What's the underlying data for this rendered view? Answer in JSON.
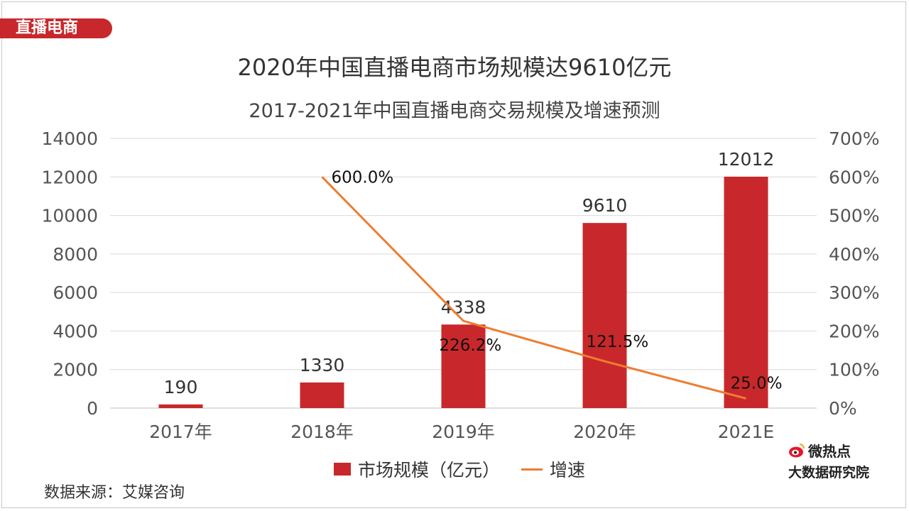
{
  "tag": "直播电商",
  "source": "数据来源：艾媒咨询",
  "brand": {
    "line1": "微热点",
    "line2": "大数据研究院",
    "icon": "weibo-eye-icon"
  },
  "legend": {
    "bar_label": "市场规模（亿元）",
    "line_label": "增速"
  },
  "colors": {
    "bar": "#c8282b",
    "line": "#ed7d31",
    "grid": "#d9d9d9",
    "tag": "#c8282b"
  },
  "chart_data": {
    "type": "bar",
    "title": "2020年中国直播电商市场规模达9610亿元",
    "subtitle": "2017-2021年中国直播电商交易规模及增速预测",
    "categories": [
      "2017年",
      "2018年",
      "2019年",
      "2020年",
      "2021E"
    ],
    "series": [
      {
        "name": "市场规模（亿元）",
        "type": "bar",
        "axis": "left",
        "values": [
          190,
          1330,
          4338,
          9610,
          12012
        ],
        "labels": [
          "190",
          "1330",
          "4338",
          "9610",
          "12012"
        ]
      },
      {
        "name": "增速",
        "type": "line",
        "axis": "right",
        "values": [
          null,
          600.0,
          226.2,
          121.5,
          25.0
        ],
        "labels": [
          null,
          "600.0%",
          "226.2%",
          "121.5%",
          "25.0%"
        ]
      }
    ],
    "left_axis": {
      "min": 0,
      "max": 14000,
      "ticks": [
        0,
        2000,
        4000,
        6000,
        8000,
        10000,
        12000,
        14000
      ]
    },
    "right_axis": {
      "min": 0,
      "max": 700,
      "ticks": [
        "0%",
        "100%",
        "200%",
        "300%",
        "400%",
        "500%",
        "600%",
        "700%"
      ]
    },
    "grid": true,
    "legend_position": "bottom"
  }
}
